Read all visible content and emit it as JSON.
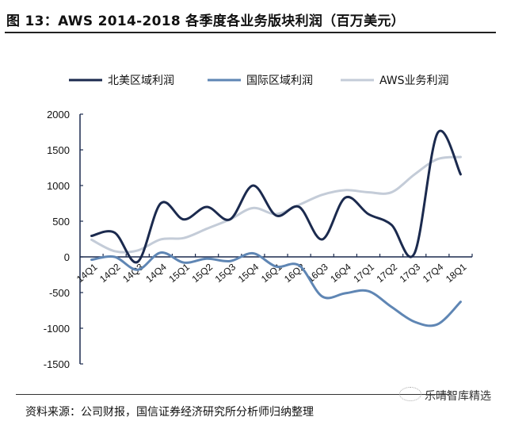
{
  "title": "图 13：AWS 2014-2018 各季度各业务版块利润（百万美元）",
  "source": "资料来源：公司财报，国信证券经济研究所分析师归纳整理",
  "watermark": "乐晴智库精选",
  "chart_data": {
    "type": "line",
    "smooth": true,
    "categories": [
      "14Q1",
      "14Q2",
      "14Q3",
      "14Q4",
      "15Q1",
      "15Q2",
      "15Q3",
      "15Q4",
      "16Q1",
      "16Q2",
      "16Q3",
      "16Q4",
      "17Q1",
      "17Q2",
      "17Q3",
      "17Q4",
      "18Q1"
    ],
    "ylim": [
      -1500,
      2000
    ],
    "yticks": [
      2000,
      1500,
      1000,
      500,
      0,
      -500,
      -1000,
      -1500
    ],
    "grid": false,
    "legend": "top",
    "series": [
      {
        "name": "北美区域利润",
        "color": "#1b2a4e",
        "values": [
          294,
          340,
          -70,
          750,
          525,
          700,
          525,
          1000,
          580,
          700,
          245,
          830,
          600,
          450,
          50,
          1735,
          1157
        ]
      },
      {
        "name": "国际区域利润",
        "color": "#5f86b4",
        "values": [
          -40,
          0,
          -180,
          60,
          -80,
          -25,
          -60,
          50,
          -135,
          -120,
          -555,
          -510,
          -480,
          -700,
          -910,
          -945,
          -630
        ]
      },
      {
        "name": "AWS业务利润",
        "color": "#c4ccd8",
        "values": [
          240,
          80,
          90,
          245,
          265,
          395,
          525,
          685,
          600,
          730,
          870,
          935,
          905,
          905,
          1155,
          1370,
          1400
        ]
      }
    ]
  }
}
